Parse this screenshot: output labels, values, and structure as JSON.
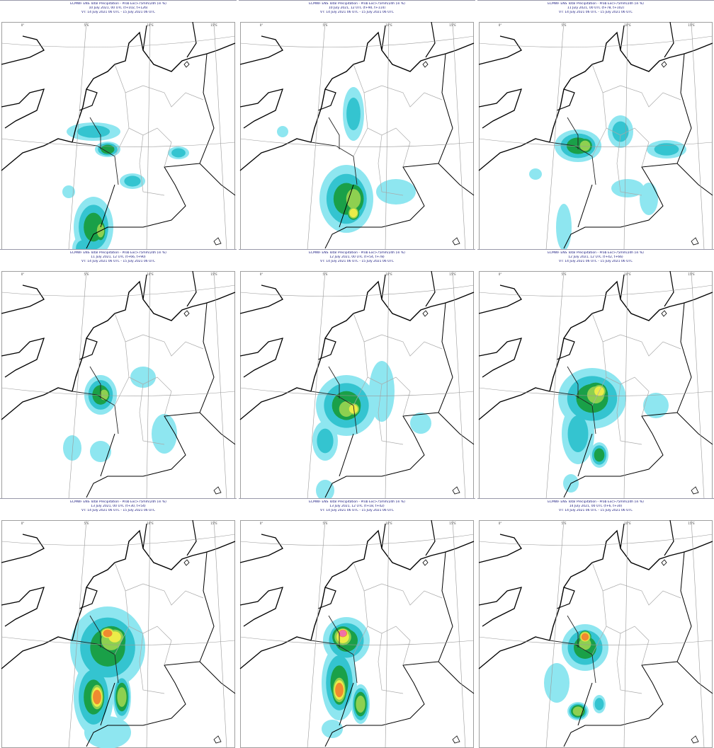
{
  "panels": [
    {
      "title": "ECMWF ENS Total Precipitation - Prob Exc>75mm/24h (in %)",
      "base": "10 July 2021, 00 UTC (t+102, t+126)",
      "valid": "VT: 14 July 2021 06 UTC - 15 July 2021 06 UTC"
    },
    {
      "title": "ECMWF ENS Total Precipitation - Prob Exc>75mm/24h (in %)",
      "base": "10 July 2021, 12 UTC (t+90, t+114)",
      "valid": "VT: 14 July 2021 06 UTC - 15 July 2021 06 UTC"
    },
    {
      "title": "ECMWF ENS Total Precipitation - Prob Exc>75mm/24h (in %)",
      "base": "11 July 2021, 00 UTC (t+78, t+102)",
      "valid": "VT: 14 July 2021 06 UTC - 15 July 2021 06 UTC"
    },
    {
      "title": "ECMWF ENS Total Precipitation - Prob Exc>75mm/24h (in %)",
      "base": "11 July 2021, 12 UTC (t+66, t+90)",
      "valid": "VT: 14 July 2021 06 UTC - 15 July 2021 06 UTC"
    },
    {
      "title": "ECMWF ENS Total Precipitation - Prob Exc>75mm/24h (in %)",
      "base": "12 July 2021, 00 UTC (t+54, t+78)",
      "valid": "VT: 14 July 2021 06 UTC - 15 July 2021 06 UTC"
    },
    {
      "title": "ECMWF ENS Total Precipitation - Prob Exc>75mm/24h (in %)",
      "base": "12 July 2021, 12 UTC (t+42, t+66)",
      "valid": "VT: 14 July 2021 06 UTC - 15 July 2021 06 UTC"
    },
    {
      "title": "ECMWF ENS Total Precipitation - Prob Exc>75mm/24h (in %)",
      "base": "13 July 2021, 00 UTC (t+30, t+54)",
      "valid": "VT: 14 July 2021 06 UTC - 15 July 2021 06 UTC"
    },
    {
      "title": "ECMWF ENS Total Precipitation - Prob Exc>75mm/24h (in %)",
      "base": "13 July 2021, 12 UTC (t+18, t+42)",
      "valid": "VT: 14 July 2021 06 UTC - 15 July 2021 06 UTC"
    },
    {
      "title": "ECMWF ENS Total Precipitation - Prob Exc>75mm/24h (in %)",
      "base": "14 July 2021, 00 UTC (t+6, t+30)",
      "valid": "VT: 14 July 2021 06 UTC - 15 July 2021 06 UTC"
    }
  ],
  "lon_labels": [
    "0°",
    "5°E",
    "10°E",
    "15°E"
  ]
}
